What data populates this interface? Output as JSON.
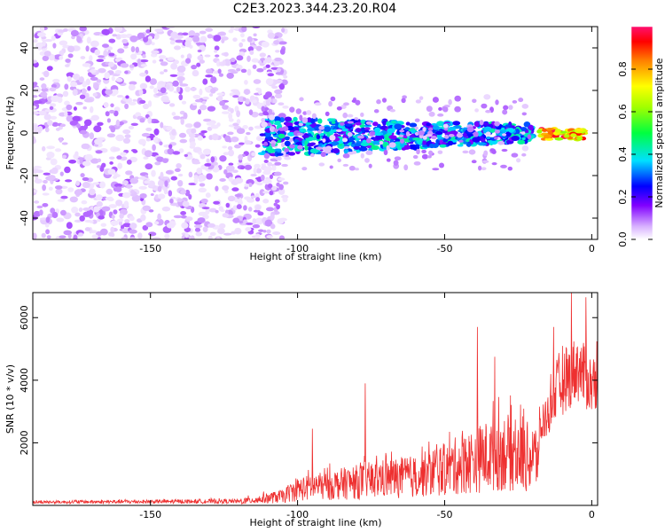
{
  "title": "C2E3.2023.344.23.20.R04",
  "chart_data": [
    {
      "type": "heatmap",
      "xlabel": "Height of straight line (km)",
      "ylabel": "Frequency (Hz)",
      "xlim": [
        -190,
        2
      ],
      "ylim": [
        -50,
        50
      ],
      "x_ticks": [
        -150,
        -100,
        -50,
        0
      ],
      "y_ticks": [
        -40,
        -20,
        0,
        20,
        40
      ],
      "colorbar": {
        "label": "Normalized spectral amplitude",
        "range": [
          0,
          1
        ],
        "ticks": [
          "0.0",
          "0.2",
          "0.4",
          "0.6",
          "0.8"
        ],
        "colormap": "rainbow"
      },
      "features": [
        {
          "x_range": [
            -190,
            -112
          ],
          "frequency_range": [
            -50,
            50
          ],
          "amplitude": [
            0.02,
            0.12
          ]
        },
        {
          "x_range": [
            -112,
            -20
          ],
          "frequency_range": [
            -12,
            8
          ],
          "amplitude": [
            0.15,
            0.45
          ]
        },
        {
          "x_range": [
            -18,
            -2
          ],
          "frequency_range": [
            -3,
            2
          ],
          "amplitude": [
            0.6,
            1.0
          ]
        }
      ]
    },
    {
      "type": "line",
      "xlabel": "Height of straight line (km)",
      "ylabel": "SNR (10 * v/v)",
      "xlim": [
        -190,
        2
      ],
      "ylim": [
        0,
        6800
      ],
      "x_ticks": [
        -150,
        -100,
        -50,
        0
      ],
      "y_ticks": [
        2000,
        4000,
        6000
      ],
      "color": "#ee3030",
      "envelope": [
        {
          "x": -190,
          "snr": 150
        },
        {
          "x": -120,
          "snr": 200
        },
        {
          "x": -105,
          "snr": 500
        },
        {
          "x": -100,
          "snr": 900
        },
        {
          "x": -90,
          "snr": 1100
        },
        {
          "x": -80,
          "snr": 1300
        },
        {
          "x": -70,
          "snr": 1500
        },
        {
          "x": -60,
          "snr": 1600
        },
        {
          "x": -50,
          "snr": 2000
        },
        {
          "x": -40,
          "snr": 2500
        },
        {
          "x": -30,
          "snr": 3000
        },
        {
          "x": -20,
          "snr": 2600
        },
        {
          "x": -18,
          "snr": 2800
        },
        {
          "x": -12,
          "snr": 4500
        },
        {
          "x": -5,
          "snr": 5500
        },
        {
          "x": 0,
          "snr": 4800
        },
        {
          "x": 2,
          "snr": 5200
        }
      ],
      "peaks": [
        {
          "x": -95,
          "snr": 2450
        },
        {
          "x": -77,
          "snr": 3900
        },
        {
          "x": -39,
          "snr": 5700
        },
        {
          "x": -33,
          "snr": 4750
        },
        {
          "x": -13,
          "snr": 5700
        },
        {
          "x": -7,
          "snr": 6800
        },
        {
          "x": -2,
          "snr": 6650
        }
      ]
    }
  ]
}
